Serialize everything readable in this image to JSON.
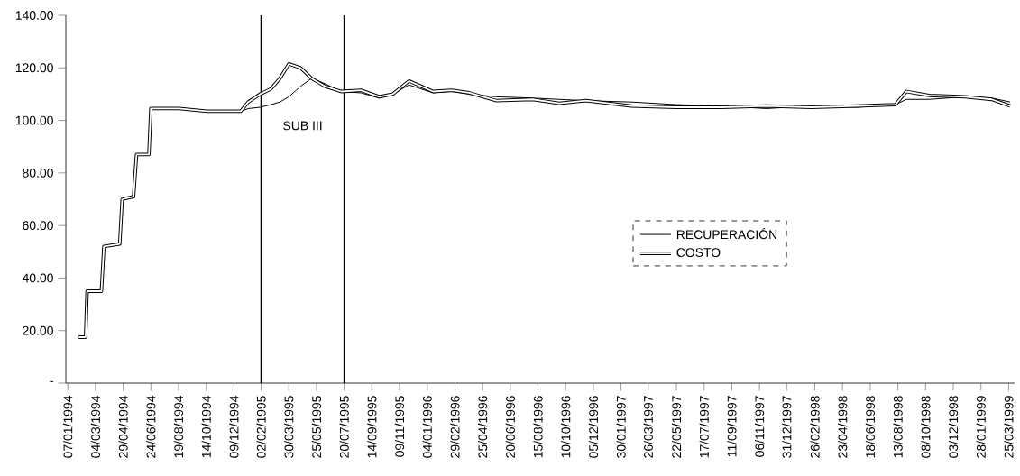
{
  "chart_data": {
    "type": "line",
    "x": [
      "1994-01-29",
      "1994-02-12",
      "1994-02-15",
      "1994-03-16",
      "1994-03-21",
      "1994-04-22",
      "1994-04-27",
      "1994-05-20",
      "1994-05-26",
      "1994-06-20",
      "1994-06-24",
      "1994-08-20",
      "1994-10-15",
      "1994-12-23",
      "1995-01-07",
      "1995-01-31",
      "1995-02-22",
      "1995-03-12",
      "1995-03-30",
      "1995-04-23",
      "1995-05-15",
      "1995-06-11",
      "1995-07-14",
      "1995-08-23",
      "1995-09-29",
      "1995-10-26",
      "1995-11-28",
      "1996-01-16",
      "1996-02-22",
      "1996-03-29",
      "1996-05-23",
      "1996-08-04",
      "1996-09-27",
      "1996-11-20",
      "1997-02-20",
      "1997-05-22",
      "1997-08-21",
      "1997-11-20",
      "1998-02-19",
      "1998-05-22",
      "1998-08-08",
      "1998-08-30",
      "1998-10-15",
      "1998-12-27",
      "1999-02-19",
      "1999-03-28"
    ],
    "series": [
      {
        "name": "RECUPERACIÓN",
        "color": "#000000",
        "values": [
          17.5,
          17.5,
          35,
          35,
          52,
          53,
          70,
          71,
          87,
          87,
          104.5,
          104.5,
          103.5,
          103.5,
          104.5,
          105,
          106,
          107,
          109,
          113,
          116,
          114,
          111,
          110.5,
          108.5,
          110,
          113.5,
          110.5,
          111,
          110,
          109,
          108.5,
          108,
          107.5,
          107,
          106,
          105.5,
          104.5,
          105.5,
          105,
          106,
          108,
          108,
          109,
          108.5,
          107
        ]
      },
      {
        "name": "COSTO",
        "color": "#000000",
        "values": [
          17.5,
          17.5,
          35,
          35,
          52,
          53,
          70,
          71,
          87,
          87,
          104.5,
          104.5,
          103.5,
          103.5,
          107,
          110,
          112,
          116,
          121.5,
          120,
          116,
          113,
          111,
          111.5,
          109,
          110,
          115,
          111,
          111.5,
          110.5,
          107.5,
          108,
          106.5,
          107.5,
          105.5,
          105,
          105,
          105.5,
          105,
          105.5,
          106,
          111,
          109.5,
          109,
          108,
          105.5
        ]
      }
    ],
    "xlim": [
      "1994-01-03",
      "1999-04-06"
    ],
    "xticks": [
      {
        "value": "1994-01-07",
        "label": "07/01/1994"
      },
      {
        "value": "1994-03-04",
        "label": "04/03/1994"
      },
      {
        "value": "1994-04-29",
        "label": "29/04/1994"
      },
      {
        "value": "1994-06-24",
        "label": "24/06/1994"
      },
      {
        "value": "1994-08-19",
        "label": "19/08/1994"
      },
      {
        "value": "1994-10-14",
        "label": "14/10/1994"
      },
      {
        "value": "1994-12-09",
        "label": "09/12/1994"
      },
      {
        "value": "1995-02-02",
        "label": "02/02/1995"
      },
      {
        "value": "1995-03-30",
        "label": "30/03/1995"
      },
      {
        "value": "1995-05-25",
        "label": "25/05/1995"
      },
      {
        "value": "1995-07-20",
        "label": "20/07/1995"
      },
      {
        "value": "1995-09-14",
        "label": "14/09/1995"
      },
      {
        "value": "1995-11-09",
        "label": "09/11/1995"
      },
      {
        "value": "1996-01-04",
        "label": "04/01/1996"
      },
      {
        "value": "1996-02-29",
        "label": "29/02/1996"
      },
      {
        "value": "1996-04-25",
        "label": "25/04/1996"
      },
      {
        "value": "1996-06-20",
        "label": "20/06/1996"
      },
      {
        "value": "1996-08-15",
        "label": "15/08/1996"
      },
      {
        "value": "1996-10-10",
        "label": "10/10/1996"
      },
      {
        "value": "1996-12-05",
        "label": "05/12/1996"
      },
      {
        "value": "1997-01-30",
        "label": "30/01/1997"
      },
      {
        "value": "1997-03-26",
        "label": "26/03/1997"
      },
      {
        "value": "1997-05-22",
        "label": "22/05/1997"
      },
      {
        "value": "1997-07-17",
        "label": "17/07/1997"
      },
      {
        "value": "1997-09-11",
        "label": "11/09/1997"
      },
      {
        "value": "1997-11-06",
        "label": "06/11/1997"
      },
      {
        "value": "1997-12-31",
        "label": "31/12/1997"
      },
      {
        "value": "1998-02-26",
        "label": "26/02/1998"
      },
      {
        "value": "1998-04-23",
        "label": "23/04/1998"
      },
      {
        "value": "1998-06-18",
        "label": "18/06/1998"
      },
      {
        "value": "1998-08-13",
        "label": "13/08/1998"
      },
      {
        "value": "1998-10-08",
        "label": "08/10/1998"
      },
      {
        "value": "1998-12-03",
        "label": "03/12/1998"
      },
      {
        "value": "1999-01-28",
        "label": "28/01/1999"
      },
      {
        "value": "1999-03-25",
        "label": "25/03/1999"
      }
    ],
    "ylim": [
      0,
      140
    ],
    "yticks": [
      {
        "value": 0,
        "label": "-"
      },
      {
        "value": 20,
        "label": "20.00"
      },
      {
        "value": 40,
        "label": "40.00"
      },
      {
        "value": 60,
        "label": "60.00"
      },
      {
        "value": 80,
        "label": "80.00"
      },
      {
        "value": 100,
        "label": "100.00"
      },
      {
        "value": 120,
        "label": "120.00"
      },
      {
        "value": 140,
        "label": "140.00"
      }
    ],
    "ref_lines": [
      {
        "axis": "x",
        "value": "1995-02-02",
        "color": "#000000"
      },
      {
        "axis": "x",
        "value": "1995-07-20",
        "color": "#000000"
      }
    ],
    "annotations": [
      "SUB III"
    ],
    "legend": "right",
    "line_style": "solid"
  }
}
